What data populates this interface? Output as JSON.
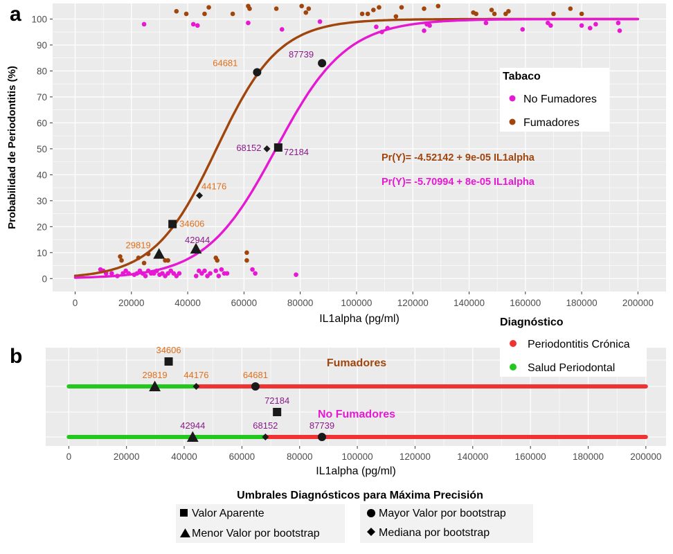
{
  "colors": {
    "panel_bg": "#ebebeb",
    "grid": "#ffffff",
    "no_fumadores": "#e619d3",
    "fumadores": "#a0450c",
    "cronica": "#f03232",
    "salud": "#22c81e",
    "label_orange": "#e0701a",
    "label_purple": "#8a1a8a",
    "label_black": "#1a1a1a"
  },
  "chart_data": [
    {
      "panel": "a",
      "type": "scatter",
      "title": "",
      "xlabel": "IL1alpha (pg/ml)",
      "ylabel": "Probabilidad de Periodontitis (%)",
      "xlim": [
        -8000,
        210000
      ],
      "ylim": [
        -5,
        106
      ],
      "x_ticks": [
        0,
        20000,
        40000,
        60000,
        80000,
        100000,
        120000,
        140000,
        160000,
        180000,
        200000
      ],
      "y_ticks": [
        0,
        10,
        20,
        30,
        40,
        50,
        60,
        70,
        80,
        90,
        100
      ],
      "grid": true,
      "legend": {
        "title": "Tabaco",
        "position": "right",
        "entries": [
          "No Fumadores",
          "Fumadores"
        ]
      },
      "series": [
        {
          "name": "No Fumadores",
          "color": "#e619d3",
          "points": [
            [
              9000,
              3.5
            ],
            [
              10000,
              3
            ],
            [
              11000,
              2
            ],
            [
              13000,
              2
            ],
            [
              15000,
              1
            ],
            [
              17000,
              2
            ],
            [
              18000,
              3
            ],
            [
              19000,
              2
            ],
            [
              21000,
              1.5
            ],
            [
              22000,
              2
            ],
            [
              23000,
              3
            ],
            [
              24000,
              2
            ],
            [
              25000,
              1
            ],
            [
              26000,
              3
            ],
            [
              27000,
              2
            ],
            [
              28000,
              2
            ],
            [
              29000,
              3
            ],
            [
              30000,
              1.5
            ],
            [
              31000,
              2
            ],
            [
              32000,
              1
            ],
            [
              33000,
              2
            ],
            [
              34000,
              3
            ],
            [
              35000,
              2
            ],
            [
              36000,
              1
            ],
            [
              37000,
              2
            ],
            [
              43000,
              1
            ],
            [
              44000,
              3
            ],
            [
              45000,
              2
            ],
            [
              46000,
              3
            ],
            [
              47000,
              1
            ],
            [
              48000,
              2
            ],
            [
              50000,
              3
            ],
            [
              51000,
              1
            ],
            [
              52000,
              3.5
            ],
            [
              53000,
              2
            ],
            [
              54000,
              2
            ],
            [
              63000,
              3.5
            ],
            [
              64000,
              2
            ],
            [
              78500,
              1.5
            ],
            [
              24500,
              98
            ],
            [
              42000,
              98
            ],
            [
              43500,
              97.5
            ],
            [
              61500,
              98.5
            ],
            [
              73500,
              96
            ],
            [
              87000,
              99
            ],
            [
              107000,
              97
            ],
            [
              109000,
              95
            ],
            [
              111000,
              96.5
            ],
            [
              124000,
              95.5
            ],
            [
              125000,
              98
            ],
            [
              126000,
              97.5
            ],
            [
              146000,
              98.5
            ],
            [
              159000,
              96
            ],
            [
              168000,
              98.5
            ],
            [
              169000,
              97.5
            ],
            [
              180000,
              97.5
            ],
            [
              183000,
              96.5
            ],
            [
              185000,
              98
            ],
            [
              193000,
              98.5
            ],
            [
              193500,
              95.5
            ]
          ]
        },
        {
          "name": "Fumadores",
          "color": "#a0450c",
          "points": [
            [
              16000,
              8.5
            ],
            [
              16500,
              7
            ],
            [
              22500,
              8
            ],
            [
              24500,
              6
            ],
            [
              26000,
              9.5
            ],
            [
              32000,
              7
            ],
            [
              33000,
              7
            ],
            [
              50000,
              8
            ],
            [
              50500,
              7
            ],
            [
              61000,
              10
            ],
            [
              61000,
              7
            ],
            [
              36000,
              103
            ],
            [
              39500,
              102
            ],
            [
              46000,
              102
            ],
            [
              47500,
              104.5
            ],
            [
              56000,
              102
            ],
            [
              61500,
              105
            ],
            [
              62000,
              104
            ],
            [
              71500,
              104
            ],
            [
              80500,
              105
            ],
            [
              82000,
              102.5
            ],
            [
              83000,
              104
            ],
            [
              102000,
              102
            ],
            [
              104000,
              102
            ],
            [
              106000,
              103.5
            ],
            [
              108000,
              104.5
            ],
            [
              114000,
              101
            ],
            [
              116000,
              104.5
            ],
            [
              124000,
              104
            ],
            [
              129000,
              105
            ],
            [
              141500,
              102.5
            ],
            [
              142500,
              102
            ],
            [
              148000,
              103.5
            ],
            [
              149000,
              102
            ],
            [
              153000,
              102
            ],
            [
              154000,
              103
            ],
            [
              170000,
              102
            ],
            [
              176000,
              104
            ],
            [
              180000,
              102
            ]
          ]
        }
      ],
      "curves": [
        {
          "name": "Fumadores",
          "intercept": -4.52142,
          "slope": 9e-05,
          "color": "#a0450c"
        },
        {
          "name": "No Fumadores",
          "intercept": -5.70994,
          "slope": 8e-05,
          "color": "#e619d3"
        }
      ],
      "equations": [
        {
          "text": "Pr(Y)= -4.52142 + 9e-05 IL1alpha",
          "color": "#a0450c"
        },
        {
          "text": "Pr(Y)= -5.70994 + 8e-05 IL1alpha",
          "color": "#e619d3"
        }
      ],
      "markers": [
        {
          "shape": "square",
          "x": 34606,
          "y": 21,
          "label": "34606",
          "label_color": "#e0701a"
        },
        {
          "shape": "triangle",
          "x": 29819,
          "y": 9.5,
          "label": "29819",
          "label_color": "#e0701a"
        },
        {
          "shape": "diamond",
          "x": 44176,
          "y": 32,
          "label": "44176",
          "label_color": "#e0701a"
        },
        {
          "shape": "circle",
          "x": 64681,
          "y": 79.5,
          "label": "64681",
          "label_color": "#e0701a"
        },
        {
          "shape": "square",
          "x": 72184,
          "y": 50.5,
          "label": "72184",
          "label_color": "#8a1a8a"
        },
        {
          "shape": "triangle",
          "x": 42944,
          "y": 11.5,
          "label": "42944",
          "label_color": "#8a1a8a"
        },
        {
          "shape": "diamond",
          "x": 68152,
          "y": 50,
          "label": "68152",
          "label_color": "#8a1a8a"
        },
        {
          "shape": "circle",
          "x": 87739,
          "y": 83,
          "label": "87739",
          "label_color": "#8a1a8a"
        }
      ]
    },
    {
      "panel": "b",
      "type": "line",
      "title": "",
      "xlabel": "IL1alpha (pg/ml)",
      "xlim": [
        -8000,
        207000
      ],
      "x_ticks": [
        0,
        20000,
        40000,
        60000,
        80000,
        100000,
        120000,
        140000,
        160000,
        180000,
        200000
      ],
      "grid": true,
      "legend": {
        "title": "Diagnóstico",
        "position": "right",
        "entries": [
          "Periodontitis Crónica",
          "Salud Periodontal"
        ]
      },
      "groups": [
        {
          "name": "Fumadores",
          "name_color": "#a0450c",
          "salud_range": [
            0,
            44176
          ],
          "cronica_range": [
            44176,
            200000
          ],
          "markers": [
            {
              "shape": "square",
              "x": 34606,
              "label": "34606",
              "label_color": "#e0701a"
            },
            {
              "shape": "triangle",
              "x": 29819,
              "label": "29819",
              "label_color": "#e0701a"
            },
            {
              "shape": "diamond",
              "x": 44176,
              "label": "44176",
              "label_color": "#e0701a"
            },
            {
              "shape": "circle",
              "x": 64681,
              "label": "64681",
              "label_color": "#e0701a"
            }
          ]
        },
        {
          "name": "No Fumadores",
          "name_color": "#e619d3",
          "salud_range": [
            0,
            68152
          ],
          "cronica_range": [
            68152,
            200000
          ],
          "markers": [
            {
              "shape": "square",
              "x": 72184,
              "label": "72184",
              "label_color": "#8a1a8a"
            },
            {
              "shape": "triangle",
              "x": 42944,
              "label": "42944",
              "label_color": "#8a1a8a"
            },
            {
              "shape": "diamond",
              "x": 68152,
              "label": "68152",
              "label_color": "#8a1a8a"
            },
            {
              "shape": "circle",
              "x": 87739,
              "label": "87739",
              "label_color": "#8a1a8a"
            }
          ]
        }
      ]
    }
  ],
  "panel_labels": [
    "a",
    "b"
  ],
  "shape_legend": {
    "title": "Umbrales Diagnósticos para Máxima Precisión",
    "entries": [
      {
        "shape": "square",
        "label": "Valor Aparente"
      },
      {
        "shape": "circle",
        "label": "Mayor Valor por bootstrap"
      },
      {
        "shape": "triangle",
        "label": "Menor Valor por bootstrap"
      },
      {
        "shape": "diamond",
        "label": "Mediana por bootstrap"
      }
    ]
  }
}
